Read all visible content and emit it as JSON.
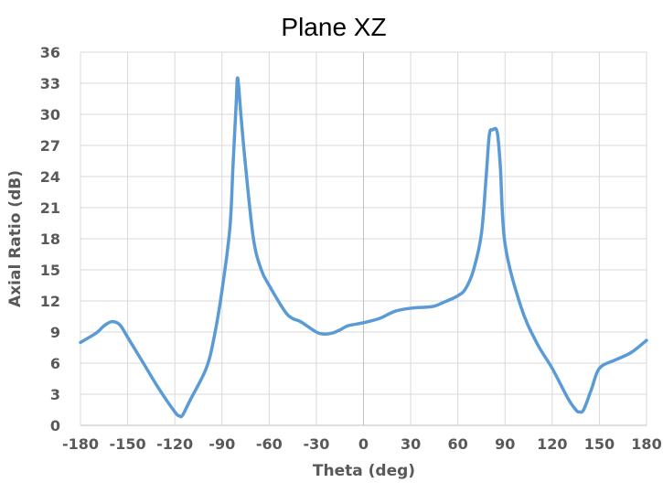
{
  "chart_data": {
    "type": "line",
    "title": "Plane XZ",
    "xlabel": "Theta (deg)",
    "ylabel": "Axial Ratio (dB)",
    "xlim": [
      -180,
      180
    ],
    "ylim": [
      0,
      36
    ],
    "xticks": [
      -180,
      -150,
      -120,
      -90,
      -60,
      -30,
      0,
      30,
      60,
      90,
      120,
      150,
      180
    ],
    "yticks": [
      0,
      3,
      6,
      9,
      12,
      15,
      18,
      21,
      24,
      27,
      30,
      33,
      36
    ],
    "grid": true,
    "legend": "none",
    "series": [
      {
        "color": "#5b9bd5",
        "x": [
          -180,
          -170,
          -165,
          -160,
          -155,
          -150,
          -140,
          -130,
          -120,
          -117,
          -115,
          -110,
          -100,
          -95,
          -90,
          -85,
          -83,
          -81,
          -80,
          -78,
          -75,
          -70,
          -65,
          -60,
          -50,
          -45,
          -40,
          -30,
          -25,
          -20,
          -15,
          -10,
          0,
          10,
          20,
          30,
          40,
          45,
          50,
          60,
          65,
          70,
          75,
          78,
          80,
          82,
          85,
          87,
          90,
          100,
          110,
          120,
          130,
          135,
          137,
          140,
          145,
          150,
          160,
          170,
          180
        ],
        "y": [
          8.0,
          8.9,
          9.6,
          10.0,
          9.7,
          8.5,
          6.0,
          3.5,
          1.3,
          0.9,
          1.0,
          2.5,
          5.5,
          8.5,
          13.0,
          19.0,
          25.0,
          31.0,
          33.5,
          30.0,
          25.0,
          18.0,
          15.0,
          13.5,
          11.0,
          10.3,
          10.0,
          9.0,
          8.8,
          8.9,
          9.2,
          9.6,
          9.9,
          10.3,
          11.0,
          11.3,
          11.4,
          11.5,
          11.8,
          12.5,
          13.2,
          15.0,
          18.5,
          24.0,
          28.0,
          28.5,
          28.3,
          25.0,
          17.5,
          11.5,
          8.0,
          5.5,
          2.6,
          1.5,
          1.3,
          1.5,
          3.5,
          5.5,
          6.3,
          7.0,
          8.2
        ]
      }
    ]
  }
}
